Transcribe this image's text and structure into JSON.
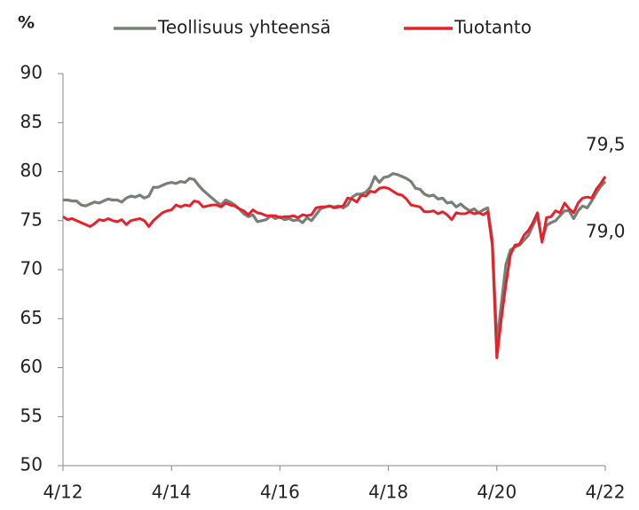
{
  "chart_data": {
    "type": "line",
    "y_label": "%",
    "categories": [
      "4/12",
      null,
      null,
      null,
      null,
      null,
      null,
      null,
      null,
      null,
      null,
      null,
      null,
      null,
      null,
      null,
      null,
      null,
      null,
      null,
      null,
      null,
      null,
      null,
      "4/14",
      null,
      null,
      null,
      null,
      null,
      null,
      null,
      null,
      null,
      null,
      null,
      null,
      null,
      null,
      null,
      null,
      null,
      null,
      null,
      null,
      null,
      null,
      null,
      "4/16",
      null,
      null,
      null,
      null,
      null,
      null,
      null,
      null,
      null,
      null,
      null,
      null,
      null,
      null,
      null,
      null,
      null,
      null,
      null,
      null,
      null,
      null,
      null,
      "4/18",
      null,
      null,
      null,
      null,
      null,
      null,
      null,
      null,
      null,
      null,
      null,
      null,
      null,
      null,
      null,
      null,
      null,
      null,
      null,
      null,
      null,
      null,
      null,
      "4/20",
      null,
      null,
      null,
      null,
      null,
      null,
      null,
      null,
      null,
      null,
      null,
      null,
      null,
      null,
      null,
      null,
      null,
      null,
      null,
      null,
      null,
      null,
      null,
      "4/22"
    ],
    "series": [
      {
        "name": "Teollisuus yhteensä",
        "color": "#768077",
        "values": [
          77.1,
          77.1,
          77.0,
          77.0,
          76.6,
          76.5,
          76.7,
          76.9,
          76.8,
          77.0,
          77.2,
          77.1,
          77.1,
          76.9,
          77.3,
          77.5,
          77.4,
          77.6,
          77.3,
          77.5,
          78.4,
          78.4,
          78.6,
          78.8,
          78.9,
          78.8,
          79.0,
          78.9,
          79.3,
          79.2,
          78.6,
          78.1,
          77.7,
          77.3,
          76.9,
          76.6,
          77.1,
          76.9,
          76.6,
          76.2,
          75.7,
          75.4,
          75.6,
          74.9,
          75.0,
          75.1,
          75.5,
          75.2,
          75.4,
          75.1,
          75.2,
          75.0,
          75.1,
          74.8,
          75.3,
          75.0,
          75.6,
          76.2,
          76.4,
          76.5,
          76.4,
          76.5,
          76.3,
          76.6,
          77.4,
          77.7,
          77.7,
          77.9,
          78.4,
          79.5,
          78.9,
          79.4,
          79.5,
          79.8,
          79.7,
          79.5,
          79.3,
          79.0,
          78.3,
          78.2,
          77.7,
          77.5,
          77.6,
          77.2,
          77.3,
          76.8,
          76.9,
          76.4,
          76.7,
          76.3,
          76.0,
          76.2,
          75.8,
          76.1,
          76.3,
          73.0,
          62.5,
          66.5,
          70.5,
          72.0,
          72.3,
          72.5,
          73.0,
          73.5,
          74.5,
          75.5,
          73.0,
          74.5,
          74.8,
          75.0,
          75.5,
          76.0,
          76.0,
          75.2,
          76.0,
          76.5,
          76.3,
          77.0,
          77.8,
          78.5,
          79.0
        ]
      },
      {
        "name": "Tuotanto",
        "color": "#e8202a",
        "values": [
          75.4,
          75.1,
          75.2,
          75.0,
          74.8,
          74.6,
          74.4,
          74.7,
          75.1,
          75.0,
          75.2,
          75.0,
          74.9,
          75.1,
          74.6,
          75.0,
          75.1,
          75.2,
          75.0,
          74.4,
          75.0,
          75.4,
          75.8,
          76.0,
          76.1,
          76.6,
          76.4,
          76.6,
          76.5,
          77.0,
          76.9,
          76.4,
          76.5,
          76.6,
          76.6,
          76.4,
          76.8,
          76.6,
          76.5,
          76.2,
          76.0,
          75.6,
          76.1,
          75.8,
          75.7,
          75.5,
          75.5,
          75.5,
          75.3,
          75.4,
          75.4,
          75.5,
          75.3,
          75.6,
          75.5,
          75.6,
          76.3,
          76.4,
          76.4,
          76.5,
          76.3,
          76.4,
          76.5,
          77.3,
          77.2,
          76.9,
          77.6,
          77.5,
          78.0,
          77.9,
          78.3,
          78.4,
          78.3,
          78.0,
          77.7,
          77.6,
          77.2,
          76.6,
          76.5,
          76.4,
          75.9,
          75.9,
          76.0,
          75.7,
          75.9,
          75.6,
          75.1,
          75.8,
          75.7,
          75.7,
          75.9,
          75.7,
          75.8,
          75.6,
          75.9,
          72.5,
          61.0,
          65.0,
          68.5,
          71.5,
          72.5,
          72.6,
          73.5,
          74.0,
          74.8,
          75.8,
          72.8,
          75.3,
          75.4,
          76.0,
          75.8,
          76.8,
          76.2,
          75.8,
          76.8,
          77.3,
          77.4,
          77.3,
          78.2,
          78.8,
          79.5
        ]
      }
    ],
    "annotations": [
      "79,5",
      "79,0"
    ],
    "ylim": [
      50,
      90
    ],
    "yticks": [
      50,
      55,
      60,
      65,
      70,
      75,
      80,
      85,
      90
    ]
  }
}
